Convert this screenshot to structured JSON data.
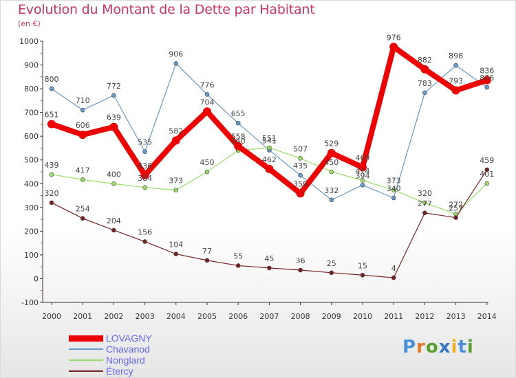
{
  "header": {
    "title": "Evolution du Montant de la Dette par Habitant",
    "unit": "(en €)"
  },
  "logo": {
    "text": "Proxiti",
    "letters": [
      "P",
      "r",
      "o",
      "x",
      "i",
      "t",
      "i"
    ],
    "colors": [
      "#4a90d9",
      "#e07a2a",
      "#5aa02c",
      "#3a76c4",
      "#e8b020",
      "#4a90d9",
      "#5aa02c"
    ]
  },
  "chart_data": {
    "type": "line",
    "title": "Evolution du Montant de la Dette par Habitant",
    "subtitle": "(en €)",
    "x": [
      "2000",
      "2001",
      "2002",
      "2003",
      "2004",
      "2005",
      "2006",
      "2007",
      "2008",
      "2009",
      "2010",
      "2011",
      "2012",
      "2013",
      "2014"
    ],
    "ylim": [
      -100,
      1000
    ],
    "yticks": [
      -100,
      0,
      100,
      200,
      300,
      400,
      500,
      600,
      700,
      800,
      900,
      1000
    ],
    "grid": false,
    "legend_position": "bottom-left",
    "series": [
      {
        "name": "LOVAGNY",
        "color": "#ee0000",
        "values": [
          651,
          606,
          639,
          436,
          582,
          704,
          558,
          462,
          359,
          529,
          469,
          976,
          882,
          793,
          836
        ],
        "labels": [
          "651",
          "606",
          "639",
          "436",
          "582",
          "704",
          "558",
          "462",
          "359",
          "529",
          "469",
          "976",
          "882",
          "793",
          "836"
        ]
      },
      {
        "name": "Chavanod",
        "color": "#6699cc",
        "values": [
          800,
          710,
          772,
          535,
          906,
          776,
          655,
          541,
          435,
          332,
          394,
          340,
          783,
          898,
          806
        ],
        "labels": [
          "800",
          "710",
          "772",
          "535",
          "906",
          "776",
          "655",
          "541",
          "435",
          "332",
          "394",
          "340",
          "783",
          "898",
          "806"
        ]
      },
      {
        "name": "Nonglard",
        "color": "#99dd66",
        "values": [
          439,
          417,
          400,
          384,
          373,
          450,
          540,
          551,
          507,
          450,
          414,
          373,
          320,
          272,
          401
        ],
        "labels": [
          "439",
          "417",
          "400",
          "384",
          "373",
          "450",
          "540",
          "551",
          "507",
          "450",
          "414",
          "373",
          "320",
          "272",
          "401"
        ]
      },
      {
        "name": "Étercy",
        "color": "#772222",
        "values": [
          320,
          254,
          204,
          156,
          104,
          77,
          55,
          45,
          36,
          25,
          15,
          4,
          277,
          257,
          459
        ],
        "labels": [
          "320",
          "254",
          "204",
          "156",
          "104",
          "77",
          "55",
          "45",
          "36",
          "25",
          "15",
          "4",
          "277",
          "257",
          "459"
        ]
      }
    ]
  }
}
